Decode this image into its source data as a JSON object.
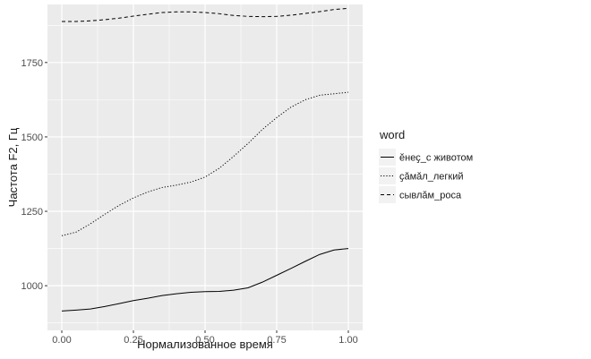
{
  "chart_data": {
    "type": "line",
    "xlabel": "Нормализованное время",
    "ylabel": "Частота F2, Гц",
    "xlim": [
      -0.05,
      1.05
    ],
    "ylim": [
      850,
      1945
    ],
    "x_ticks": [
      0.0,
      0.25,
      0.5,
      0.75,
      1.0
    ],
    "x_tick_labels": [
      "0.00",
      "0.25",
      "0.50",
      "0.75",
      "1.00"
    ],
    "y_ticks": [
      1000,
      1250,
      1500,
      1750
    ],
    "y_tick_labels": [
      "1000",
      "1250",
      "1500",
      "1750"
    ],
    "grid": true,
    "panel_background": "#ebebeb",
    "grid_color": "#ffffff",
    "legend_title": "word",
    "legend_position": "right",
    "series": [
      {
        "name": "ӗнеҫ_с животом",
        "linetype": "solid",
        "x": [
          0.0,
          0.05,
          0.1,
          0.15,
          0.2,
          0.25,
          0.3,
          0.35,
          0.4,
          0.45,
          0.5,
          0.55,
          0.6,
          0.65,
          0.7,
          0.75,
          0.8,
          0.85,
          0.9,
          0.95,
          1.0
        ],
        "y": [
          915,
          918,
          922,
          930,
          940,
          950,
          958,
          967,
          973,
          978,
          980,
          981,
          985,
          993,
          1012,
          1035,
          1058,
          1082,
          1105,
          1120,
          1125
        ]
      },
      {
        "name": "ҫӑмӑл_легкий",
        "linetype": "dotted",
        "x": [
          0.0,
          0.05,
          0.1,
          0.15,
          0.2,
          0.25,
          0.3,
          0.35,
          0.4,
          0.45,
          0.5,
          0.55,
          0.6,
          0.65,
          0.7,
          0.75,
          0.8,
          0.85,
          0.9,
          0.95,
          1.0
        ],
        "y": [
          1168,
          1180,
          1208,
          1240,
          1270,
          1295,
          1315,
          1330,
          1338,
          1348,
          1365,
          1395,
          1435,
          1478,
          1525,
          1565,
          1600,
          1625,
          1640,
          1645,
          1650
        ]
      },
      {
        "name": "сывлӑм_роса",
        "linetype": "dashed",
        "x": [
          0.0,
          0.05,
          0.1,
          0.15,
          0.2,
          0.25,
          0.3,
          0.35,
          0.4,
          0.45,
          0.5,
          0.55,
          0.6,
          0.65,
          0.7,
          0.75,
          0.8,
          0.85,
          0.9,
          0.95,
          1.0
        ],
        "y": [
          1888,
          1888,
          1890,
          1894,
          1899,
          1906,
          1912,
          1918,
          1920,
          1920,
          1918,
          1914,
          1908,
          1905,
          1904,
          1905,
          1909,
          1915,
          1921,
          1928,
          1932
        ]
      }
    ]
  }
}
